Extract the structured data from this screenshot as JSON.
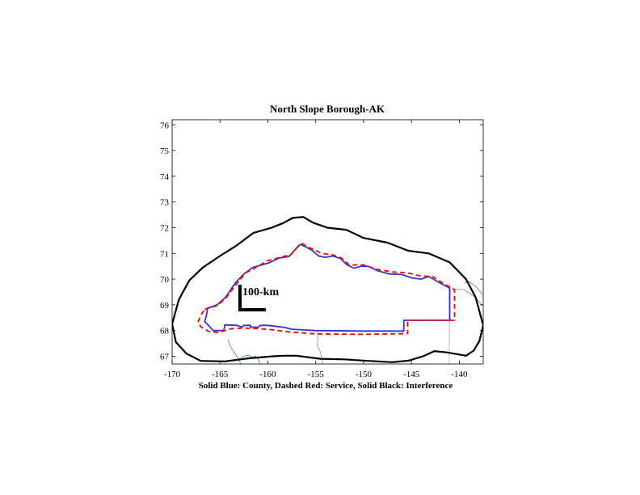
{
  "title": "North Slope Borough-AK",
  "caption": "Solid Blue: County, Dashed Red: Service, Solid Black: Interference",
  "scale_label": "100-km",
  "colors": {
    "county": "#3333cc",
    "service": "#ff0000",
    "interference": "#000000",
    "coastline": "#4a7fa0",
    "border": "#555555"
  },
  "chart_data": {
    "type": "map",
    "title": "North Slope Borough-AK",
    "xlim": [
      -170,
      -137.5
    ],
    "ylim": [
      66.7,
      76.2
    ],
    "x_ticks": [
      -170,
      -165,
      -160,
      -155,
      -150,
      -145,
      -140
    ],
    "y_ticks": [
      67,
      68,
      69,
      70,
      71,
      72,
      73,
      74,
      75,
      76
    ],
    "grid": false,
    "series": [
      {
        "name": "County",
        "style": "solid",
        "color": "#3333cc",
        "points": [
          [
            -166.3,
            68.87
          ],
          [
            -165.3,
            69.0
          ],
          [
            -164.4,
            69.3
          ],
          [
            -163.4,
            69.85
          ],
          [
            -162.5,
            70.2
          ],
          [
            -161.6,
            70.45
          ],
          [
            -160.0,
            70.62
          ],
          [
            -158.8,
            70.82
          ],
          [
            -157.8,
            70.88
          ],
          [
            -157.0,
            71.2
          ],
          [
            -156.6,
            71.35
          ],
          [
            -156.0,
            71.25
          ],
          [
            -155.3,
            71.1
          ],
          [
            -154.7,
            70.9
          ],
          [
            -154.0,
            70.85
          ],
          [
            -153.2,
            70.9
          ],
          [
            -152.4,
            70.8
          ],
          [
            -151.7,
            70.55
          ],
          [
            -151.0,
            70.42
          ],
          [
            -150.3,
            70.5
          ],
          [
            -149.5,
            70.5
          ],
          [
            -148.5,
            70.32
          ],
          [
            -147.3,
            70.2
          ],
          [
            -146.0,
            70.18
          ],
          [
            -145.0,
            70.05
          ],
          [
            -144.0,
            70.0
          ],
          [
            -143.2,
            70.1
          ],
          [
            -142.0,
            69.85
          ],
          [
            -141.0,
            69.65
          ],
          [
            -141.0,
            68.4
          ],
          [
            -145.8,
            68.4
          ],
          [
            -145.8,
            67.98
          ],
          [
            -150.0,
            67.98
          ],
          [
            -155.0,
            68.0
          ],
          [
            -157.5,
            68.05
          ],
          [
            -158.2,
            68.12
          ],
          [
            -160.0,
            68.2
          ],
          [
            -160.8,
            68.2
          ],
          [
            -161.0,
            68.13
          ],
          [
            -161.8,
            68.13
          ],
          [
            -161.8,
            68.2
          ],
          [
            -162.5,
            68.2
          ],
          [
            -162.7,
            68.13
          ],
          [
            -163.2,
            68.2
          ],
          [
            -164.5,
            68.22
          ],
          [
            -164.6,
            68.0
          ],
          [
            -165.7,
            68.0
          ],
          [
            -166.2,
            68.2
          ],
          [
            -166.6,
            68.35
          ],
          [
            -166.4,
            68.6
          ],
          [
            -166.3,
            68.87
          ]
        ]
      },
      {
        "name": "Service",
        "style": "dashed",
        "color": "#ff0000",
        "points": [
          [
            -166.6,
            68.82
          ],
          [
            -165.3,
            68.97
          ],
          [
            -164.4,
            69.25
          ],
          [
            -163.3,
            69.8
          ],
          [
            -162.3,
            70.25
          ],
          [
            -161.5,
            70.4
          ],
          [
            -160.0,
            70.72
          ],
          [
            -158.7,
            70.85
          ],
          [
            -157.6,
            70.95
          ],
          [
            -156.8,
            71.3
          ],
          [
            -156.4,
            71.38
          ],
          [
            -155.8,
            71.25
          ],
          [
            -155.0,
            71.12
          ],
          [
            -154.4,
            71.0
          ],
          [
            -153.3,
            70.95
          ],
          [
            -152.3,
            70.82
          ],
          [
            -151.5,
            70.55
          ],
          [
            -150.0,
            70.55
          ],
          [
            -148.6,
            70.38
          ],
          [
            -147.0,
            70.28
          ],
          [
            -145.5,
            70.25
          ],
          [
            -144.0,
            70.12
          ],
          [
            -142.8,
            70.1
          ],
          [
            -141.6,
            69.82
          ],
          [
            -140.5,
            69.58
          ],
          [
            -140.5,
            68.4
          ],
          [
            -145.4,
            68.4
          ],
          [
            -145.4,
            67.88
          ],
          [
            -150.0,
            67.85
          ],
          [
            -155.0,
            67.87
          ],
          [
            -157.8,
            67.95
          ],
          [
            -160.0,
            68.05
          ],
          [
            -162.5,
            68.1
          ],
          [
            -163.8,
            68.07
          ],
          [
            -165.2,
            67.92
          ],
          [
            -166.2,
            67.97
          ],
          [
            -167.0,
            68.15
          ],
          [
            -167.3,
            68.32
          ],
          [
            -167.0,
            68.6
          ],
          [
            -166.6,
            68.82
          ]
        ]
      },
      {
        "name": "Interference",
        "style": "solid",
        "color": "#000000",
        "points": [
          [
            -170.0,
            68.25
          ],
          [
            -169.3,
            69.2
          ],
          [
            -168.2,
            69.95
          ],
          [
            -166.8,
            70.45
          ],
          [
            -165.0,
            70.9
          ],
          [
            -163.3,
            71.3
          ],
          [
            -161.5,
            71.8
          ],
          [
            -159.6,
            72.0
          ],
          [
            -158.4,
            72.18
          ],
          [
            -157.4,
            72.38
          ],
          [
            -156.3,
            72.42
          ],
          [
            -155.3,
            72.2
          ],
          [
            -153.8,
            72.0
          ],
          [
            -151.8,
            71.92
          ],
          [
            -150.0,
            71.6
          ],
          [
            -147.5,
            71.42
          ],
          [
            -145.3,
            71.1
          ],
          [
            -143.2,
            71.0
          ],
          [
            -141.0,
            70.65
          ],
          [
            -139.3,
            70.0
          ],
          [
            -138.3,
            69.3
          ],
          [
            -137.5,
            68.2
          ],
          [
            -137.9,
            67.6
          ],
          [
            -138.5,
            67.22
          ],
          [
            -139.3,
            67.02
          ],
          [
            -140.2,
            67.08
          ],
          [
            -141.3,
            67.15
          ],
          [
            -142.6,
            67.2
          ],
          [
            -143.8,
            67.0
          ],
          [
            -145.3,
            66.83
          ],
          [
            -147.0,
            66.77
          ],
          [
            -149.5,
            66.82
          ],
          [
            -152.0,
            66.88
          ],
          [
            -154.5,
            66.9
          ],
          [
            -157.0,
            67.02
          ],
          [
            -158.3,
            67.02
          ],
          [
            -159.5,
            67.0
          ],
          [
            -162.0,
            66.92
          ],
          [
            -164.5,
            66.8
          ],
          [
            -167.0,
            66.82
          ],
          [
            -168.5,
            67.1
          ],
          [
            -169.6,
            67.55
          ],
          [
            -170.0,
            68.25
          ]
        ]
      }
    ]
  }
}
